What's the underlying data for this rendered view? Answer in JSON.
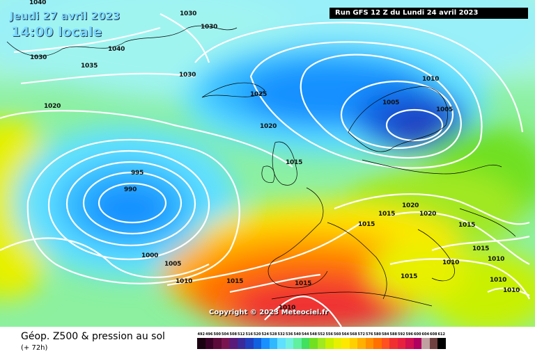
{
  "header": {
    "date": "Jeudi 27 avril 2023",
    "time": "14:00 locale",
    "run": "Run GFS 12 Z du Lundi 24 avril 2023"
  },
  "map": {
    "isobar_labels": [
      "1040",
      "1030",
      "1030",
      "1040",
      "1030",
      "1035",
      "1030",
      "1020",
      "1025",
      "1020",
      "1010",
      "1005",
      "1005",
      "995",
      "990",
      "1015",
      "1000",
      "1005",
      "1010",
      "1015",
      "1015",
      "1015",
      "1020",
      "1020",
      "1015",
      "1015",
      "1010",
      "1015",
      "1010",
      "1010",
      "1015",
      "1010",
      "1010"
    ],
    "copyright": "Copyright © 2023 Meteociel.fr"
  },
  "legend": {
    "field": "Géop. Z500 & pression au sol",
    "lead": "(+ 72h)",
    "scale_values": [
      "492",
      "496",
      "500",
      "504",
      "508",
      "512",
      "516",
      "520",
      "524",
      "528",
      "532",
      "536",
      "540",
      "544",
      "548",
      "552",
      "556",
      "560",
      "564",
      "568",
      "572",
      "576",
      "580",
      "584",
      "588",
      "592",
      "596",
      "600",
      "604",
      "608",
      "612"
    ],
    "scale_colors": [
      "#1a0010",
      "#3a0028",
      "#5c0a3c",
      "#7a1450",
      "#5a1a7a",
      "#3a2a9a",
      "#2040c0",
      "#1060e0",
      "#1890ff",
      "#30b8ff",
      "#60e0ff",
      "#70f0e0",
      "#60f0a0",
      "#40e060",
      "#70e020",
      "#a0e820",
      "#c8f000",
      "#e8f000",
      "#ffe800",
      "#ffd000",
      "#ffb000",
      "#ff9000",
      "#ff7000",
      "#ff5020",
      "#f03030",
      "#e82040",
      "#d01050",
      "#b00060",
      "#c0a0a0",
      "#704040",
      "#000000"
    ]
  }
}
